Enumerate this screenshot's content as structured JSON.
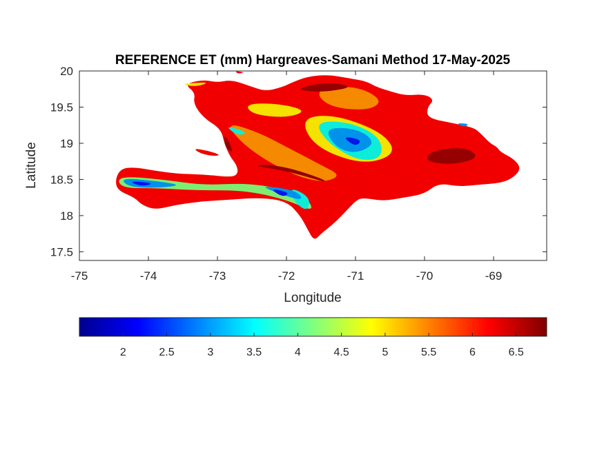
{
  "chart_data": {
    "type": "heatmap",
    "title": "REFERENCE ET (mm) Hargreaves-Samani Method  17-May-2025",
    "xlabel": "Longitude",
    "ylabel": "Latitude",
    "xlim": [
      -75,
      -68.23
    ],
    "ylim": [
      17.38,
      20
    ],
    "x_ticks": [
      -75,
      -74,
      -73,
      -72,
      -71,
      -70,
      -69
    ],
    "x_tick_labels": [
      "-75",
      "-74",
      "-73",
      "-72",
      "-71",
      "-70",
      "-69"
    ],
    "y_ticks": [
      17.5,
      18,
      18.5,
      19,
      19.5,
      20
    ],
    "y_tick_labels": [
      "17.5",
      "18",
      "18.5",
      "19",
      "19.5",
      "20"
    ],
    "grid": false,
    "colormap": "jet",
    "colorbar": {
      "orientation": "horizontal",
      "location": "below",
      "range": [
        1.5,
        6.85
      ],
      "ticks": [
        2,
        2.5,
        3,
        3.5,
        4,
        4.5,
        5,
        5.5,
        6,
        6.5
      ],
      "tick_labels": [
        "2",
        "2.5",
        "3",
        "3.5",
        "4",
        "4.5",
        "5",
        "5.5",
        "6",
        "6.5"
      ]
    },
    "regions": [
      {
        "value": 6.2,
        "lonlat": [
          [
            -73.48,
            19.82
          ],
          [
            -73.2,
            19.88
          ],
          [
            -73.0,
            19.84
          ],
          [
            -72.8,
            19.88
          ],
          [
            -72.5,
            19.78
          ],
          [
            -72.3,
            19.72
          ],
          [
            -72.05,
            19.78
          ],
          [
            -71.9,
            19.85
          ],
          [
            -71.7,
            19.92
          ],
          [
            -71.4,
            19.95
          ],
          [
            -71.1,
            19.9
          ],
          [
            -70.85,
            19.86
          ],
          [
            -70.7,
            19.78
          ],
          [
            -70.5,
            19.72
          ],
          [
            -70.28,
            19.66
          ],
          [
            -70.0,
            19.68
          ],
          [
            -69.86,
            19.6
          ],
          [
            -69.96,
            19.5
          ],
          [
            -69.96,
            19.35
          ],
          [
            -69.6,
            19.28
          ],
          [
            -69.3,
            19.22
          ],
          [
            -69.2,
            19.15
          ],
          [
            -69.05,
            19.0
          ],
          [
            -68.95,
            18.95
          ],
          [
            -68.9,
            18.88
          ],
          [
            -68.7,
            18.78
          ],
          [
            -68.6,
            18.65
          ],
          [
            -68.72,
            18.52
          ],
          [
            -68.9,
            18.45
          ],
          [
            -69.2,
            18.43
          ],
          [
            -69.5,
            18.4
          ],
          [
            -69.8,
            18.45
          ],
          [
            -70.0,
            18.3
          ],
          [
            -70.3,
            18.25
          ],
          [
            -70.6,
            18.2
          ],
          [
            -70.9,
            18.25
          ],
          [
            -71.0,
            18.2
          ],
          [
            -71.1,
            18.1
          ],
          [
            -71.3,
            17.9
          ],
          [
            -71.5,
            17.75
          ],
          [
            -71.6,
            17.65
          ],
          [
            -71.7,
            17.82
          ],
          [
            -71.8,
            18.0
          ],
          [
            -72.0,
            18.2
          ],
          [
            -72.4,
            18.25
          ],
          [
            -72.8,
            18.22
          ],
          [
            -73.2,
            18.2
          ],
          [
            -73.6,
            18.15
          ],
          [
            -73.9,
            18.08
          ],
          [
            -74.1,
            18.15
          ],
          [
            -74.2,
            18.25
          ],
          [
            -74.45,
            18.35
          ],
          [
            -74.48,
            18.5
          ],
          [
            -74.4,
            18.65
          ],
          [
            -74.2,
            18.67
          ],
          [
            -73.9,
            18.62
          ],
          [
            -73.6,
            18.58
          ],
          [
            -73.2,
            18.57
          ],
          [
            -72.8,
            18.53
          ],
          [
            -72.7,
            18.58
          ],
          [
            -72.72,
            18.7
          ],
          [
            -72.82,
            18.82
          ],
          [
            -72.9,
            19.0
          ],
          [
            -72.95,
            19.2
          ],
          [
            -73.2,
            19.35
          ],
          [
            -73.35,
            19.55
          ],
          [
            -73.32,
            19.7
          ]
        ]
      },
      {
        "value": 6.2,
        "lonlat": [
          [
            -73.35,
            18.93
          ],
          [
            -73.15,
            18.9
          ],
          [
            -72.95,
            18.84
          ],
          [
            -73.05,
            18.82
          ],
          [
            -73.25,
            18.86
          ]
        ]
      },
      {
        "value": 6.2,
        "lonlat": [
          [
            -72.75,
            20.0
          ],
          [
            -72.6,
            19.98
          ],
          [
            -72.7,
            19.96
          ]
        ]
      },
      {
        "value": 5.4,
        "lonlat": [
          [
            -71.6,
            19.75
          ],
          [
            -71.0,
            19.8
          ],
          [
            -70.6,
            19.6
          ],
          [
            -70.8,
            19.45
          ],
          [
            -71.4,
            19.5
          ]
        ]
      },
      {
        "value": 5.4,
        "lonlat": [
          [
            -72.9,
            19.3
          ],
          [
            -72.4,
            19.15
          ],
          [
            -72.0,
            18.95
          ],
          [
            -71.5,
            18.7
          ],
          [
            -71.2,
            18.55
          ],
          [
            -71.5,
            18.45
          ],
          [
            -72.0,
            18.6
          ],
          [
            -72.6,
            18.95
          ]
        ]
      },
      {
        "value": 4.9,
        "lonlat": [
          [
            -72.6,
            19.55
          ],
          [
            -72.1,
            19.55
          ],
          [
            -71.7,
            19.45
          ],
          [
            -72.0,
            19.35
          ],
          [
            -72.5,
            19.4
          ]
        ]
      },
      {
        "value": 4.9,
        "lonlat": [
          [
            -71.8,
            19.35
          ],
          [
            -71.3,
            19.4
          ],
          [
            -70.6,
            19.15
          ],
          [
            -70.4,
            18.85
          ],
          [
            -70.9,
            18.7
          ],
          [
            -71.6,
            18.95
          ]
        ]
      },
      {
        "value": 4.9,
        "lonlat": [
          [
            -73.55,
            19.82
          ],
          [
            -73.1,
            19.85
          ],
          [
            -73.3,
            19.78
          ]
        ]
      },
      {
        "value": 4.2,
        "lonlat": [
          [
            -74.45,
            18.55
          ],
          [
            -73.8,
            18.5
          ],
          [
            -73.2,
            18.42
          ],
          [
            -72.6,
            18.45
          ],
          [
            -72.1,
            18.38
          ],
          [
            -71.7,
            18.25
          ],
          [
            -71.6,
            18.05
          ],
          [
            -72.0,
            18.22
          ],
          [
            -72.6,
            18.35
          ],
          [
            -73.3,
            18.35
          ],
          [
            -73.9,
            18.38
          ],
          [
            -74.4,
            18.38
          ]
        ]
      },
      {
        "value": 3.6,
        "lonlat": [
          [
            -71.6,
            19.3
          ],
          [
            -71.1,
            19.3
          ],
          [
            -70.65,
            19.1
          ],
          [
            -70.6,
            18.8
          ],
          [
            -70.95,
            18.75
          ],
          [
            -71.4,
            19.0
          ]
        ]
      },
      {
        "value": 3.6,
        "lonlat": [
          [
            -71.95,
            18.4
          ],
          [
            -71.65,
            18.25
          ],
          [
            -71.7,
            18.05
          ],
          [
            -71.9,
            18.2
          ]
        ]
      },
      {
        "value": 3.6,
        "lonlat": [
          [
            -72.9,
            19.25
          ],
          [
            -72.55,
            19.15
          ],
          [
            -72.7,
            19.1
          ]
        ]
      },
      {
        "value": 3.0,
        "lonlat": [
          [
            -74.4,
            18.52
          ],
          [
            -73.9,
            18.48
          ],
          [
            -73.5,
            18.42
          ],
          [
            -73.9,
            18.38
          ],
          [
            -74.3,
            18.4
          ]
        ]
      },
      {
        "value": 3.0,
        "lonlat": [
          [
            -72.4,
            18.42
          ],
          [
            -71.85,
            18.35
          ],
          [
            -71.75,
            18.2
          ],
          [
            -72.1,
            18.3
          ]
        ]
      },
      {
        "value": 3.0,
        "lonlat": [
          [
            -71.45,
            19.22
          ],
          [
            -70.95,
            19.2
          ],
          [
            -70.7,
            19.0
          ],
          [
            -71.0,
            18.85
          ],
          [
            -71.3,
            18.95
          ]
        ]
      },
      {
        "value": 3.0,
        "lonlat": [
          [
            -69.55,
            19.28
          ],
          [
            -69.35,
            19.27
          ],
          [
            -69.42,
            19.22
          ]
        ]
      },
      {
        "value": 2.3,
        "lonlat": [
          [
            -74.3,
            18.48
          ],
          [
            -73.9,
            18.45
          ],
          [
            -74.1,
            18.4
          ]
        ]
      },
      {
        "value": 2.3,
        "lonlat": [
          [
            -72.25,
            18.38
          ],
          [
            -71.95,
            18.32
          ],
          [
            -72.05,
            18.25
          ]
        ]
      },
      {
        "value": 2.3,
        "lonlat": [
          [
            -71.2,
            19.1
          ],
          [
            -70.9,
            19.05
          ],
          [
            -71.0,
            18.95
          ]
        ]
      },
      {
        "value": 6.7,
        "lonlat": [
          [
            -71.9,
            19.75
          ],
          [
            -71.4,
            19.85
          ],
          [
            -71.0,
            19.78
          ],
          [
            -71.5,
            19.7
          ]
        ]
      },
      {
        "value": 6.7,
        "lonlat": [
          [
            -72.9,
            19.15
          ],
          [
            -72.75,
            18.85
          ],
          [
            -72.9,
            18.95
          ]
        ]
      },
      {
        "value": 6.7,
        "lonlat": [
          [
            -69.9,
            18.9
          ],
          [
            -69.4,
            18.95
          ],
          [
            -69.2,
            18.8
          ],
          [
            -69.6,
            18.7
          ],
          [
            -70.0,
            18.75
          ]
        ]
      },
      {
        "value": 6.7,
        "lonlat": [
          [
            -72.55,
            18.7
          ],
          [
            -72.0,
            18.62
          ],
          [
            -71.4,
            18.45
          ],
          [
            -71.5,
            18.52
          ],
          [
            -72.1,
            18.7
          ]
        ]
      }
    ]
  }
}
